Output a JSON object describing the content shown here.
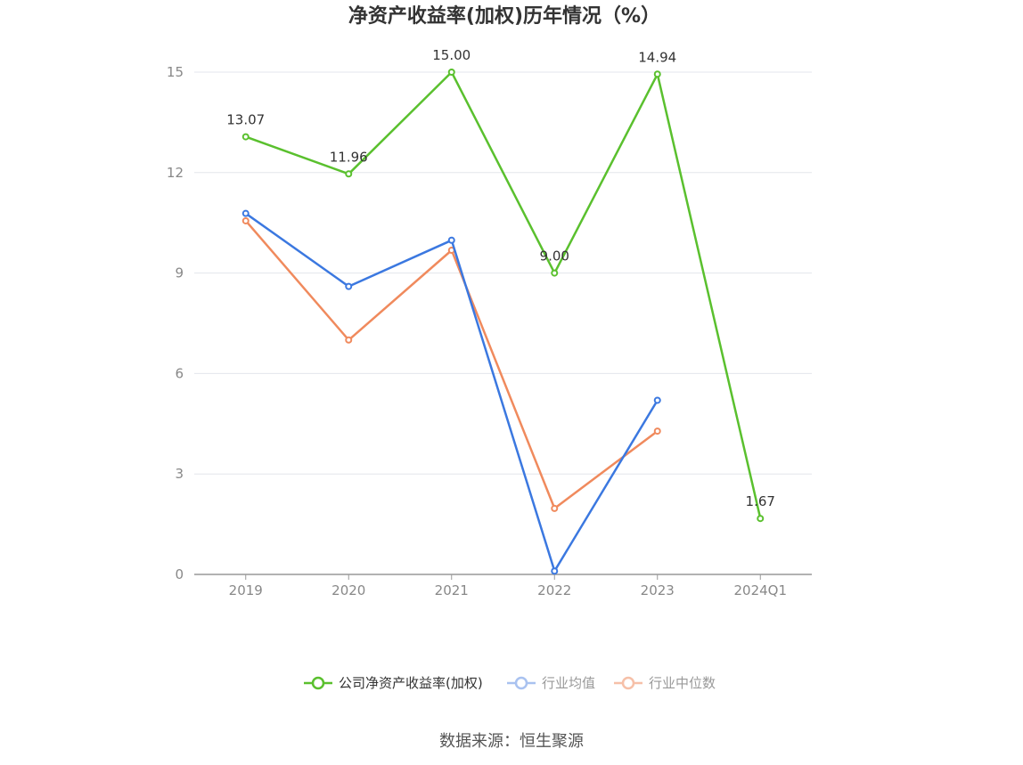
{
  "chart_data": {
    "type": "line",
    "title": "净资产收益率(加权)历年情况（%）",
    "xlabel": "",
    "ylabel": "",
    "categories": [
      "2019",
      "2020",
      "2021",
      "2022",
      "2023",
      "2024Q1"
    ],
    "ylim": [
      0,
      15
    ],
    "yticks": [
      0,
      3,
      6,
      9,
      12,
      15
    ],
    "grid": true,
    "legend_position": "bottom",
    "series": [
      {
        "name": "公司净资产收益率(加权)",
        "color": "#5ac02e",
        "values": [
          13.07,
          11.96,
          15.0,
          9.0,
          14.94,
          1.67
        ],
        "data_labels": [
          "13.07",
          "11.96",
          "15.00",
          "9.00",
          "14.94",
          "1.67"
        ]
      },
      {
        "name": "行业均值",
        "color": "#3b78e0",
        "legend_color": "#a9c2f0",
        "values": [
          10.78,
          8.6,
          9.98,
          0.1,
          5.2,
          null
        ]
      },
      {
        "name": "行业中位数",
        "color": "#f08a5d",
        "legend_color": "#f6c0a8",
        "values": [
          10.56,
          7.0,
          9.68,
          1.97,
          4.28,
          null
        ]
      }
    ]
  },
  "source": "数据来源：恒生聚源"
}
